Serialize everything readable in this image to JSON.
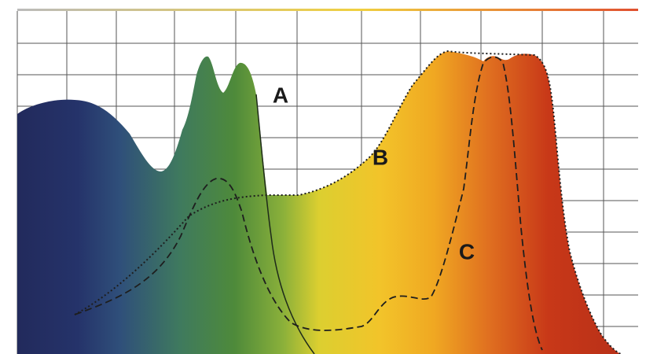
{
  "curves": [
    {
      "label": "A"
    },
    {
      "label": "B"
    },
    {
      "label": "C"
    }
  ]
}
